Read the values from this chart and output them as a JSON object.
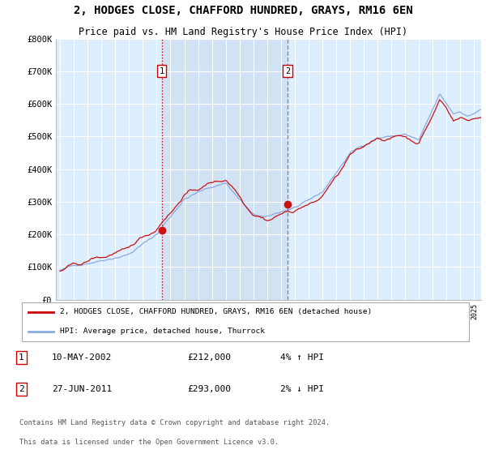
{
  "title": "2, HODGES CLOSE, CHAFFORD HUNDRED, GRAYS, RM16 6EN",
  "subtitle": "Price paid vs. HM Land Registry's House Price Index (HPI)",
  "title_fontsize": 10,
  "subtitle_fontsize": 8.5,
  "ylim": [
    0,
    800000
  ],
  "yticks": [
    0,
    100000,
    200000,
    300000,
    400000,
    500000,
    600000,
    700000,
    800000
  ],
  "ytick_labels": [
    "£0",
    "£100K",
    "£200K",
    "£300K",
    "£400K",
    "£500K",
    "£600K",
    "£700K",
    "£800K"
  ],
  "background_color": "#ffffff",
  "plot_background": "#ddeeff",
  "grid_color": "#ffffff",
  "sale1_x": 2002.36,
  "sale1_y": 212000,
  "sale2_x": 2011.49,
  "sale2_y": 293000,
  "sale1_label": "1",
  "sale2_label": "2",
  "vline1_color": "#cc0000",
  "vline1_style": ":",
  "vline2_color": "#888888",
  "vline2_style": "--",
  "legend_line1": "2, HODGES CLOSE, CHAFFORD HUNDRED, GRAYS, RM16 6EN (detached house)",
  "legend_line2": "HPI: Average price, detached house, Thurrock",
  "legend_line1_color": "#cc0000",
  "legend_line2_color": "#88aadd",
  "footer1": "Contains HM Land Registry data © Crown copyright and database right 2024.",
  "footer2": "This data is licensed under the Open Government Licence v3.0.",
  "ann1_date": "10-MAY-2002",
  "ann1_price": "£212,000",
  "ann1_hpi": "4% ↑ HPI",
  "ann2_date": "27-JUN-2011",
  "ann2_price": "£293,000",
  "ann2_hpi": "2% ↓ HPI",
  "hpi_line_color": "#88aadd",
  "price_line_color": "#cc1111",
  "shade_color": "#ccddf0",
  "xmin": 1995.0,
  "xmax": 2025.3
}
